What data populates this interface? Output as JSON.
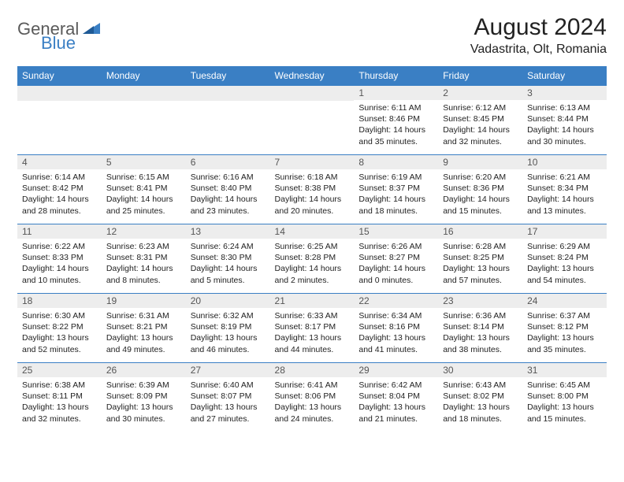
{
  "brand": {
    "part1": "General",
    "part2": "Blue"
  },
  "title": "August 2024",
  "location": "Vadastrita, Olt, Romania",
  "colors": {
    "header_bg": "#3a7fc4",
    "header_text": "#ffffff",
    "daynum_bg": "#ededed",
    "daynum_border": "#3a7fc4",
    "text": "#222222",
    "logo_gray": "#5a5a5a",
    "logo_blue": "#3a7fc4"
  },
  "day_headers": [
    "Sunday",
    "Monday",
    "Tuesday",
    "Wednesday",
    "Thursday",
    "Friday",
    "Saturday"
  ],
  "weeks": [
    [
      null,
      null,
      null,
      null,
      {
        "n": "1",
        "sr": "6:11 AM",
        "ss": "8:46 PM",
        "dl": "14 hours and 35 minutes."
      },
      {
        "n": "2",
        "sr": "6:12 AM",
        "ss": "8:45 PM",
        "dl": "14 hours and 32 minutes."
      },
      {
        "n": "3",
        "sr": "6:13 AM",
        "ss": "8:44 PM",
        "dl": "14 hours and 30 minutes."
      }
    ],
    [
      {
        "n": "4",
        "sr": "6:14 AM",
        "ss": "8:42 PM",
        "dl": "14 hours and 28 minutes."
      },
      {
        "n": "5",
        "sr": "6:15 AM",
        "ss": "8:41 PM",
        "dl": "14 hours and 25 minutes."
      },
      {
        "n": "6",
        "sr": "6:16 AM",
        "ss": "8:40 PM",
        "dl": "14 hours and 23 minutes."
      },
      {
        "n": "7",
        "sr": "6:18 AM",
        "ss": "8:38 PM",
        "dl": "14 hours and 20 minutes."
      },
      {
        "n": "8",
        "sr": "6:19 AM",
        "ss": "8:37 PM",
        "dl": "14 hours and 18 minutes."
      },
      {
        "n": "9",
        "sr": "6:20 AM",
        "ss": "8:36 PM",
        "dl": "14 hours and 15 minutes."
      },
      {
        "n": "10",
        "sr": "6:21 AM",
        "ss": "8:34 PM",
        "dl": "14 hours and 13 minutes."
      }
    ],
    [
      {
        "n": "11",
        "sr": "6:22 AM",
        "ss": "8:33 PM",
        "dl": "14 hours and 10 minutes."
      },
      {
        "n": "12",
        "sr": "6:23 AM",
        "ss": "8:31 PM",
        "dl": "14 hours and 8 minutes."
      },
      {
        "n": "13",
        "sr": "6:24 AM",
        "ss": "8:30 PM",
        "dl": "14 hours and 5 minutes."
      },
      {
        "n": "14",
        "sr": "6:25 AM",
        "ss": "8:28 PM",
        "dl": "14 hours and 2 minutes."
      },
      {
        "n": "15",
        "sr": "6:26 AM",
        "ss": "8:27 PM",
        "dl": "14 hours and 0 minutes."
      },
      {
        "n": "16",
        "sr": "6:28 AM",
        "ss": "8:25 PM",
        "dl": "13 hours and 57 minutes."
      },
      {
        "n": "17",
        "sr": "6:29 AM",
        "ss": "8:24 PM",
        "dl": "13 hours and 54 minutes."
      }
    ],
    [
      {
        "n": "18",
        "sr": "6:30 AM",
        "ss": "8:22 PM",
        "dl": "13 hours and 52 minutes."
      },
      {
        "n": "19",
        "sr": "6:31 AM",
        "ss": "8:21 PM",
        "dl": "13 hours and 49 minutes."
      },
      {
        "n": "20",
        "sr": "6:32 AM",
        "ss": "8:19 PM",
        "dl": "13 hours and 46 minutes."
      },
      {
        "n": "21",
        "sr": "6:33 AM",
        "ss": "8:17 PM",
        "dl": "13 hours and 44 minutes."
      },
      {
        "n": "22",
        "sr": "6:34 AM",
        "ss": "8:16 PM",
        "dl": "13 hours and 41 minutes."
      },
      {
        "n": "23",
        "sr": "6:36 AM",
        "ss": "8:14 PM",
        "dl": "13 hours and 38 minutes."
      },
      {
        "n": "24",
        "sr": "6:37 AM",
        "ss": "8:12 PM",
        "dl": "13 hours and 35 minutes."
      }
    ],
    [
      {
        "n": "25",
        "sr": "6:38 AM",
        "ss": "8:11 PM",
        "dl": "13 hours and 32 minutes."
      },
      {
        "n": "26",
        "sr": "6:39 AM",
        "ss": "8:09 PM",
        "dl": "13 hours and 30 minutes."
      },
      {
        "n": "27",
        "sr": "6:40 AM",
        "ss": "8:07 PM",
        "dl": "13 hours and 27 minutes."
      },
      {
        "n": "28",
        "sr": "6:41 AM",
        "ss": "8:06 PM",
        "dl": "13 hours and 24 minutes."
      },
      {
        "n": "29",
        "sr": "6:42 AM",
        "ss": "8:04 PM",
        "dl": "13 hours and 21 minutes."
      },
      {
        "n": "30",
        "sr": "6:43 AM",
        "ss": "8:02 PM",
        "dl": "13 hours and 18 minutes."
      },
      {
        "n": "31",
        "sr": "6:45 AM",
        "ss": "8:00 PM",
        "dl": "13 hours and 15 minutes."
      }
    ]
  ],
  "labels": {
    "sunrise": "Sunrise:",
    "sunset": "Sunset:",
    "daylight": "Daylight:"
  }
}
